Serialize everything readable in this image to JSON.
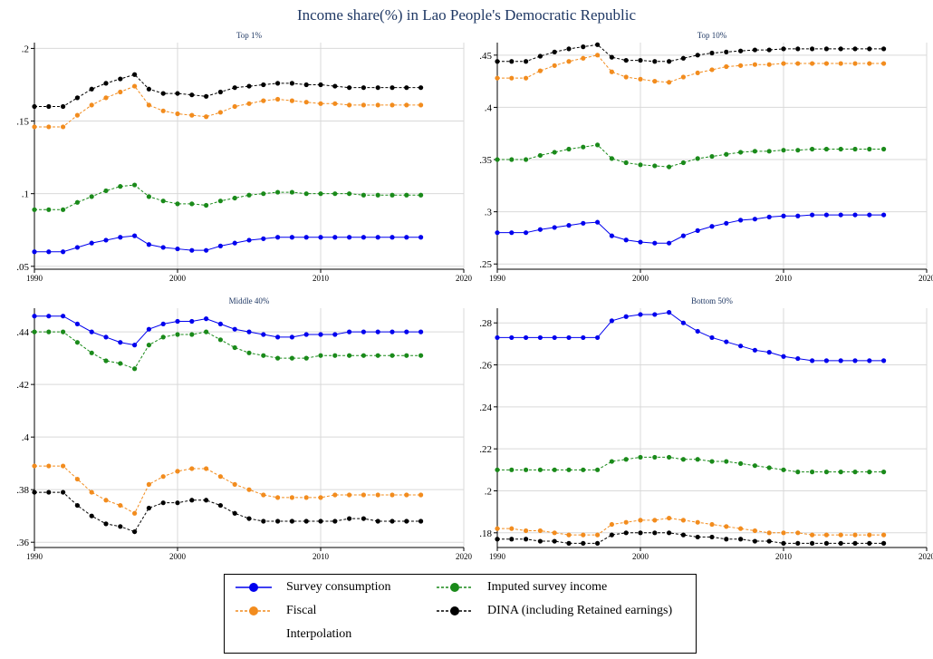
{
  "title": "Income share(%) in Lao People's Democratic Republic",
  "colors": {
    "title": "#1f3864",
    "survey": "#0000ee",
    "fiscal": "#f28c1e",
    "imputed": "#1a8a1a",
    "dina": "#000000",
    "grid": "#d9d9d9"
  },
  "legend": {
    "items": [
      {
        "label": "Survey consumption",
        "series": "survey",
        "style": "solid"
      },
      {
        "label": "Imputed survey income",
        "series": "imputed",
        "style": "dashed"
      },
      {
        "label": "Fiscal",
        "series": "fiscal",
        "style": "dashed"
      },
      {
        "label": "DINA (including Retained earnings)",
        "series": "dina",
        "style": "dashed"
      },
      {
        "label": "Interpolation",
        "series": null,
        "style": "none"
      }
    ]
  },
  "chart_data": [
    {
      "type": "line",
      "title": "Top 1%",
      "x": [
        1990,
        1991,
        1992,
        1993,
        1994,
        1995,
        1996,
        1997,
        1998,
        1999,
        2000,
        2001,
        2002,
        2003,
        2004,
        2005,
        2006,
        2007,
        2008,
        2009,
        2010,
        2011,
        2012,
        2013,
        2014,
        2015,
        2016,
        2017
      ],
      "xlim": [
        1990,
        2020
      ],
      "xticks": [
        1990,
        2000,
        2010,
        2020
      ],
      "ylim": [
        0.048,
        0.204
      ],
      "yticks": [
        0.05,
        0.1,
        0.15,
        0.2
      ],
      "ytick_labels": [
        ".05",
        ".1",
        ".15",
        ".2"
      ],
      "series": [
        {
          "key": "survey",
          "values": [
            0.06,
            0.06,
            0.06,
            0.063,
            0.066,
            0.068,
            0.07,
            0.071,
            0.065,
            0.063,
            0.062,
            0.061,
            0.061,
            0.064,
            0.066,
            0.068,
            0.069,
            0.07,
            0.07,
            0.07,
            0.07,
            0.07,
            0.07,
            0.07,
            0.07,
            0.07,
            0.07,
            0.07
          ]
        },
        {
          "key": "fiscal",
          "values": [
            0.146,
            0.146,
            0.146,
            0.154,
            0.161,
            0.166,
            0.17,
            0.174,
            0.161,
            0.157,
            0.155,
            0.154,
            0.153,
            0.156,
            0.16,
            0.162,
            0.164,
            0.165,
            0.164,
            0.163,
            0.162,
            0.162,
            0.161,
            0.161,
            0.161,
            0.161,
            0.161,
            0.161
          ]
        },
        {
          "key": "imputed",
          "values": [
            0.089,
            0.089,
            0.089,
            0.094,
            0.098,
            0.102,
            0.105,
            0.106,
            0.098,
            0.095,
            0.093,
            0.093,
            0.092,
            0.095,
            0.097,
            0.099,
            0.1,
            0.101,
            0.101,
            0.1,
            0.1,
            0.1,
            0.1,
            0.099,
            0.099,
            0.099,
            0.099,
            0.099
          ]
        },
        {
          "key": "dina",
          "values": [
            0.16,
            0.16,
            0.16,
            0.166,
            0.172,
            0.176,
            0.179,
            0.182,
            0.172,
            0.169,
            0.169,
            0.168,
            0.167,
            0.17,
            0.173,
            0.174,
            0.175,
            0.176,
            0.176,
            0.175,
            0.175,
            0.174,
            0.173,
            0.173,
            0.173,
            0.173,
            0.173,
            0.173
          ]
        }
      ]
    },
    {
      "type": "line",
      "title": "Top 10%",
      "x": [
        1990,
        1991,
        1992,
        1993,
        1994,
        1995,
        1996,
        1997,
        1998,
        1999,
        2000,
        2001,
        2002,
        2003,
        2004,
        2005,
        2006,
        2007,
        2008,
        2009,
        2010,
        2011,
        2012,
        2013,
        2014,
        2015,
        2016,
        2017
      ],
      "xlim": [
        1990,
        2020
      ],
      "xticks": [
        1990,
        2000,
        2010,
        2020
      ],
      "ylim": [
        0.245,
        0.462
      ],
      "yticks": [
        0.25,
        0.3,
        0.35,
        0.4,
        0.45
      ],
      "ytick_labels": [
        ".25",
        ".3",
        ".35",
        ".4",
        ".45"
      ],
      "series": [
        {
          "key": "survey",
          "values": [
            0.28,
            0.28,
            0.28,
            0.283,
            0.285,
            0.287,
            0.289,
            0.29,
            0.277,
            0.273,
            0.271,
            0.27,
            0.27,
            0.277,
            0.282,
            0.286,
            0.289,
            0.292,
            0.293,
            0.295,
            0.296,
            0.296,
            0.297,
            0.297,
            0.297,
            0.297,
            0.297,
            0.297
          ]
        },
        {
          "key": "fiscal",
          "values": [
            0.428,
            0.428,
            0.428,
            0.435,
            0.44,
            0.444,
            0.447,
            0.45,
            0.434,
            0.429,
            0.427,
            0.425,
            0.424,
            0.429,
            0.433,
            0.436,
            0.439,
            0.44,
            0.441,
            0.441,
            0.442,
            0.442,
            0.442,
            0.442,
            0.442,
            0.442,
            0.442,
            0.442
          ]
        },
        {
          "key": "imputed",
          "values": [
            0.35,
            0.35,
            0.35,
            0.354,
            0.357,
            0.36,
            0.362,
            0.364,
            0.351,
            0.347,
            0.345,
            0.344,
            0.343,
            0.347,
            0.351,
            0.353,
            0.355,
            0.357,
            0.358,
            0.358,
            0.359,
            0.359,
            0.36,
            0.36,
            0.36,
            0.36,
            0.36,
            0.36
          ]
        },
        {
          "key": "dina",
          "values": [
            0.444,
            0.444,
            0.444,
            0.449,
            0.453,
            0.456,
            0.458,
            0.46,
            0.448,
            0.445,
            0.445,
            0.444,
            0.444,
            0.447,
            0.45,
            0.452,
            0.453,
            0.454,
            0.455,
            0.455,
            0.456,
            0.456,
            0.456,
            0.456,
            0.456,
            0.456,
            0.456,
            0.456
          ]
        }
      ]
    },
    {
      "type": "line",
      "title": "Middle 40%",
      "x": [
        1990,
        1991,
        1992,
        1993,
        1994,
        1995,
        1996,
        1997,
        1998,
        1999,
        2000,
        2001,
        2002,
        2003,
        2004,
        2005,
        2006,
        2007,
        2008,
        2009,
        2010,
        2011,
        2012,
        2013,
        2014,
        2015,
        2016,
        2017
      ],
      "xlim": [
        1990,
        2020
      ],
      "xticks": [
        1990,
        2000,
        2010,
        2020
      ],
      "ylim": [
        0.358,
        0.449
      ],
      "yticks": [
        0.36,
        0.38,
        0.4,
        0.42,
        0.44
      ],
      "ytick_labels": [
        ".36",
        ".38",
        ".4",
        ".42",
        ".44"
      ],
      "series": [
        {
          "key": "survey",
          "values": [
            0.446,
            0.446,
            0.446,
            0.443,
            0.44,
            0.438,
            0.436,
            0.435,
            0.441,
            0.443,
            0.444,
            0.444,
            0.445,
            0.443,
            0.441,
            0.44,
            0.439,
            0.438,
            0.438,
            0.439,
            0.439,
            0.439,
            0.44,
            0.44,
            0.44,
            0.44,
            0.44,
            0.44
          ]
        },
        {
          "key": "fiscal",
          "values": [
            0.389,
            0.389,
            0.389,
            0.384,
            0.379,
            0.376,
            0.374,
            0.371,
            0.382,
            0.385,
            0.387,
            0.388,
            0.388,
            0.385,
            0.382,
            0.38,
            0.378,
            0.377,
            0.377,
            0.377,
            0.377,
            0.378,
            0.378,
            0.378,
            0.378,
            0.378,
            0.378,
            0.378
          ]
        },
        {
          "key": "imputed",
          "values": [
            0.44,
            0.44,
            0.44,
            0.436,
            0.432,
            0.429,
            0.428,
            0.426,
            0.435,
            0.438,
            0.439,
            0.439,
            0.44,
            0.437,
            0.434,
            0.432,
            0.431,
            0.43,
            0.43,
            0.43,
            0.431,
            0.431,
            0.431,
            0.431,
            0.431,
            0.431,
            0.431,
            0.431
          ]
        },
        {
          "key": "dina",
          "values": [
            0.379,
            0.379,
            0.379,
            0.374,
            0.37,
            0.367,
            0.366,
            0.364,
            0.373,
            0.375,
            0.375,
            0.376,
            0.376,
            0.374,
            0.371,
            0.369,
            0.368,
            0.368,
            0.368,
            0.368,
            0.368,
            0.368,
            0.369,
            0.369,
            0.368,
            0.368,
            0.368,
            0.368
          ]
        }
      ]
    },
    {
      "type": "line",
      "title": "Bottom 50%",
      "x": [
        1990,
        1991,
        1992,
        1993,
        1994,
        1995,
        1996,
        1997,
        1998,
        1999,
        2000,
        2001,
        2002,
        2003,
        2004,
        2005,
        2006,
        2007,
        2008,
        2009,
        2010,
        2011,
        2012,
        2013,
        2014,
        2015,
        2016,
        2017
      ],
      "xlim": [
        1990,
        2020
      ],
      "xticks": [
        1990,
        2000,
        2010,
        2020
      ],
      "ylim": [
        0.173,
        0.287
      ],
      "yticks": [
        0.18,
        0.2,
        0.22,
        0.24,
        0.26,
        0.28
      ],
      "ytick_labels": [
        ".18",
        ".2",
        ".22",
        ".24",
        ".26",
        ".28"
      ],
      "series": [
        {
          "key": "survey",
          "values": [
            0.273,
            0.273,
            0.273,
            0.273,
            0.273,
            0.273,
            0.273,
            0.273,
            0.281,
            0.283,
            0.284,
            0.284,
            0.285,
            0.28,
            0.276,
            0.273,
            0.271,
            0.269,
            0.267,
            0.266,
            0.264,
            0.263,
            0.262,
            0.262,
            0.262,
            0.262,
            0.262,
            0.262
          ]
        },
        {
          "key": "fiscal",
          "values": [
            0.182,
            0.182,
            0.181,
            0.181,
            0.18,
            0.179,
            0.179,
            0.179,
            0.184,
            0.185,
            0.186,
            0.186,
            0.187,
            0.186,
            0.185,
            0.184,
            0.183,
            0.182,
            0.181,
            0.18,
            0.18,
            0.18,
            0.179,
            0.179,
            0.179,
            0.179,
            0.179,
            0.179
          ]
        },
        {
          "key": "imputed",
          "values": [
            0.21,
            0.21,
            0.21,
            0.21,
            0.21,
            0.21,
            0.21,
            0.21,
            0.214,
            0.215,
            0.216,
            0.216,
            0.216,
            0.215,
            0.215,
            0.214,
            0.214,
            0.213,
            0.212,
            0.211,
            0.21,
            0.209,
            0.209,
            0.209,
            0.209,
            0.209,
            0.209,
            0.209
          ]
        },
        {
          "key": "dina",
          "values": [
            0.177,
            0.177,
            0.177,
            0.176,
            0.176,
            0.175,
            0.175,
            0.175,
            0.179,
            0.18,
            0.18,
            0.18,
            0.18,
            0.179,
            0.178,
            0.178,
            0.177,
            0.177,
            0.176,
            0.176,
            0.175,
            0.175,
            0.175,
            0.175,
            0.175,
            0.175,
            0.175,
            0.175
          ]
        }
      ]
    }
  ]
}
